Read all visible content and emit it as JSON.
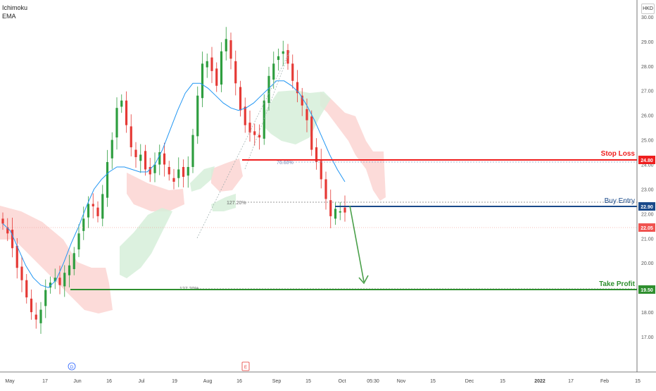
{
  "indicators": [
    "Ichimoku",
    "EMA"
  ],
  "currency": "HKD",
  "colors": {
    "up": "#2e9e3f",
    "down": "#e53935",
    "ema": "#2196f3",
    "cloud_bear": "#fbd5d2",
    "cloud_bull": "#d6eed9",
    "stop": "#ef1f1f",
    "entry": "#1a4a8a",
    "profit": "#2f8f2f",
    "price_tag": "#f05350"
  },
  "chart_data": {
    "type": "candlestick",
    "ylim": [
      16.6,
      30.6
    ],
    "y_ticks": [
      "17.00",
      "18.00",
      "19.00",
      "20.00",
      "21.00",
      "22.00",
      "23.00",
      "24.00",
      "25.00",
      "26.00",
      "27.00",
      "28.00",
      "29.00",
      "30.00"
    ],
    "x_ticks": [
      "May",
      "17",
      "Jun",
      "16",
      "Jul",
      "19",
      "Aug",
      "16",
      "Sep",
      "15",
      "Oct",
      "05:30",
      "Nov",
      "15",
      "Dec",
      "15",
      "2022",
      "17",
      "Feb",
      "15"
    ],
    "current_price": "22.05",
    "levels": [
      {
        "name": "Stop Loss",
        "value": "24.80"
      },
      {
        "name": "Buy Entry",
        "value": "22.90"
      },
      {
        "name": "Take Profit",
        "value": "19.50"
      }
    ],
    "fib_labels": [
      "76.60%",
      "127.20%",
      "127.20%"
    ],
    "markers": [
      "D",
      "E"
    ],
    "closes": [
      21.6,
      21.2,
      20.6,
      19.8,
      19.3,
      18.6,
      18.0,
      17.7,
      18.1,
      18.9,
      19.2,
      19.4,
      19.1,
      19.6,
      19.9,
      20.4,
      21.2,
      21.8,
      22.4,
      22.3,
      21.9,
      22.8,
      24.1,
      25.0,
      26.3,
      26.6,
      25.6,
      24.7,
      24.3,
      24.4,
      23.8,
      23.6,
      24.0,
      24.5,
      24.0,
      23.6,
      23.3,
      23.8,
      23.5,
      23.9,
      25.2,
      26.8,
      28.1,
      28.2,
      27.8,
      27.2,
      28.6,
      29.1,
      28.3,
      27.3,
      26.2,
      25.6,
      25.3,
      25.2,
      25.1,
      26.6,
      27.6,
      28.1,
      28.4,
      28.6,
      28.1,
      27.4,
      26.9,
      26.4,
      25.8,
      24.6,
      24.1,
      23.4,
      22.6,
      21.9,
      22.2,
      22.1,
      22.05
    ],
    "ema_values": [
      21.6,
      21.3,
      20.6,
      19.9,
      19.4,
      19.1,
      19.0,
      19.3,
      20.0,
      20.8,
      21.5,
      22.3,
      23.0,
      23.4,
      23.7,
      23.9,
      23.9,
      23.8,
      23.7,
      23.7,
      24.0,
      24.6,
      25.4,
      26.2,
      26.9,
      27.3,
      27.3,
      27.1,
      26.8,
      26.5,
      26.3,
      26.2,
      26.3,
      26.5,
      26.8,
      27.1,
      27.4,
      27.4,
      27.2,
      26.9,
      26.4,
      25.8,
      25.1,
      24.4,
      23.8,
      23.3
    ]
  }
}
